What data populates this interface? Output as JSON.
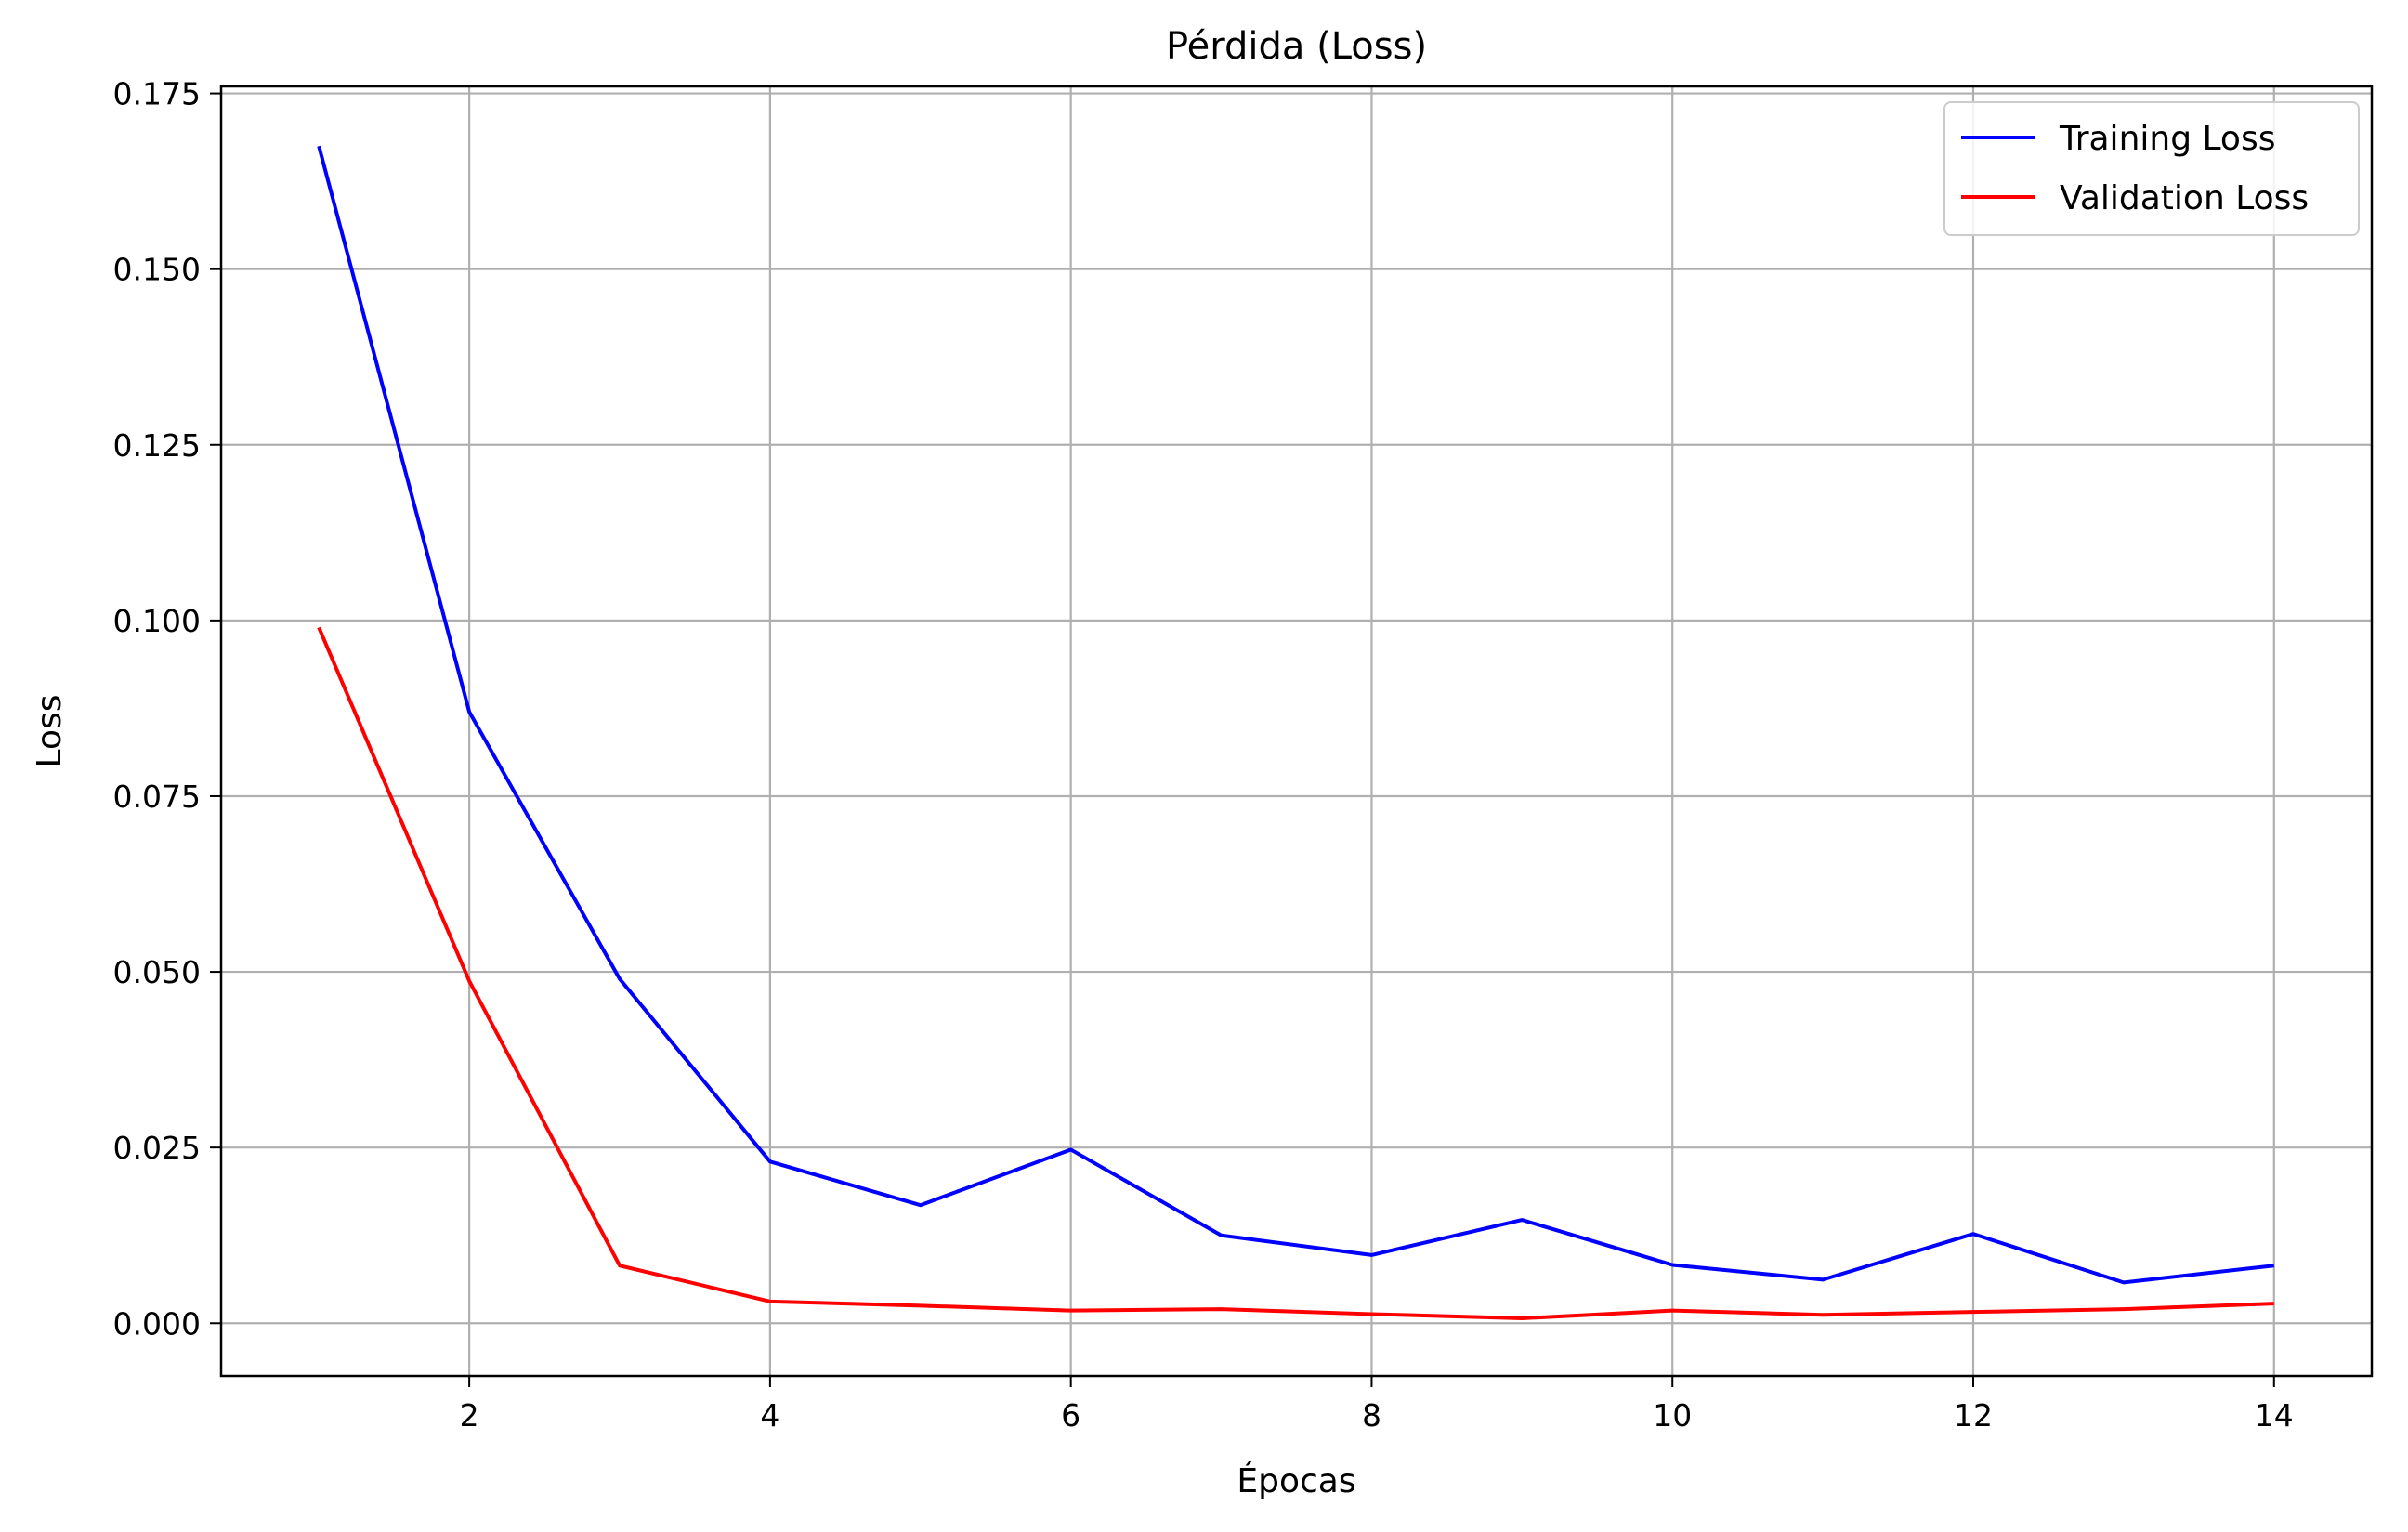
{
  "chart_data": {
    "type": "line",
    "title": "Pérdida (Loss)",
    "xlabel": "Épocas",
    "ylabel": "Loss",
    "xlim": [
      0.35,
      14.65
    ],
    "ylim": [
      -0.0075,
      0.176
    ],
    "xticks": [
      2,
      4,
      6,
      8,
      10,
      12,
      14
    ],
    "xtick_labels": [
      "2",
      "4",
      "6",
      "8",
      "10",
      "12",
      "14"
    ],
    "yticks": [
      0.0,
      0.025,
      0.05,
      0.075,
      0.1,
      0.125,
      0.15,
      0.175
    ],
    "ytick_labels": [
      "0.000",
      "0.025",
      "0.050",
      "0.075",
      "0.100",
      "0.125",
      "0.150",
      "0.175"
    ],
    "grid": true,
    "legend_position": "top-right",
    "x": [
      1,
      2,
      3,
      4,
      5,
      6,
      7,
      8,
      9,
      10,
      11,
      12,
      13,
      14
    ],
    "series": [
      {
        "name": "Training Loss",
        "color": "#0000ff",
        "values": [
          0.1675,
          0.087,
          0.049,
          0.023,
          0.0168,
          0.0247,
          0.0125,
          0.0097,
          0.0147,
          0.0083,
          0.0062,
          0.0127,
          0.0058,
          0.0082
        ]
      },
      {
        "name": "Validation Loss",
        "color": "#ff0000",
        "values": [
          0.099,
          0.0487,
          0.0082,
          0.0031,
          0.0025,
          0.0018,
          0.002,
          0.0013,
          0.0007,
          0.0018,
          0.0012,
          0.0016,
          0.002,
          0.0028
        ]
      }
    ],
    "colors": {
      "grid": "#b0b0b0",
      "axes": "#000000",
      "legend_border": "#cccccc"
    }
  }
}
